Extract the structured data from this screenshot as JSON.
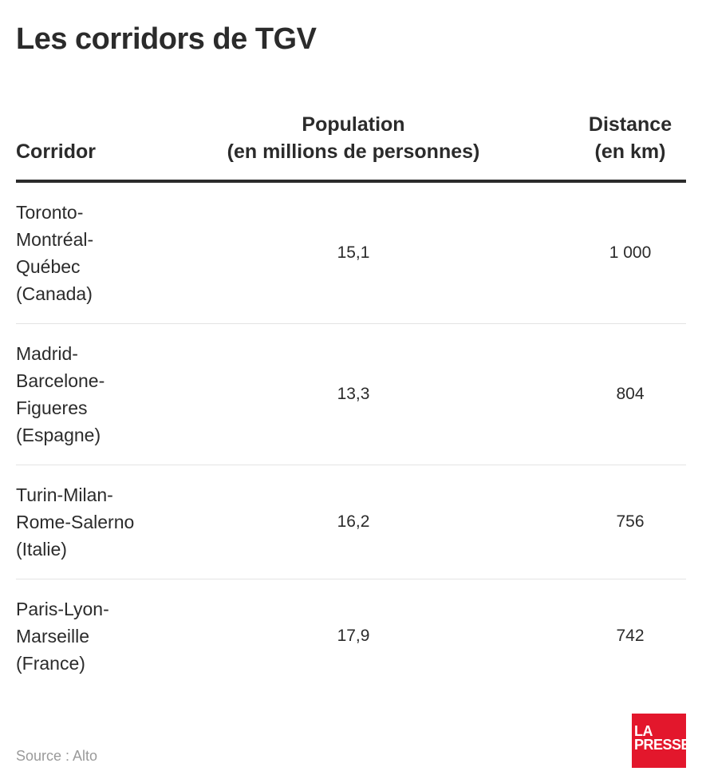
{
  "title": "Les corridors de TGV",
  "table": {
    "headers": {
      "corridor": "Corridor",
      "population": [
        "Population",
        "(en millions de personnes)"
      ],
      "distance": [
        "Distance",
        "(en km)"
      ]
    },
    "rows": [
      {
        "corridor": [
          "Toronto-",
          "Montréal-",
          "Québec",
          "(Canada)"
        ],
        "population": "15,1",
        "distance": "1 000"
      },
      {
        "corridor": [
          "Madrid-",
          "Barcelone-",
          "Figueres",
          "(Espagne)"
        ],
        "population": "13,3",
        "distance": "804"
      },
      {
        "corridor": [
          "Turin-Milan-",
          "Rome-Salerno",
          "(Italie)"
        ],
        "population": "16,2",
        "distance": "756"
      },
      {
        "corridor": [
          "Paris-Lyon-",
          "Marseille",
          "(France)"
        ],
        "population": "17,9",
        "distance": "742"
      }
    ]
  },
  "footer": {
    "source": "Source : Alto",
    "logo": [
      "LA",
      "PRESSE"
    ]
  },
  "colors": {
    "text": "#2b2b2b",
    "rule": "#2b2b2b",
    "divider": "#e3e3e3",
    "source": "#9a9a9a",
    "logo_bg": "#e3172c"
  }
}
